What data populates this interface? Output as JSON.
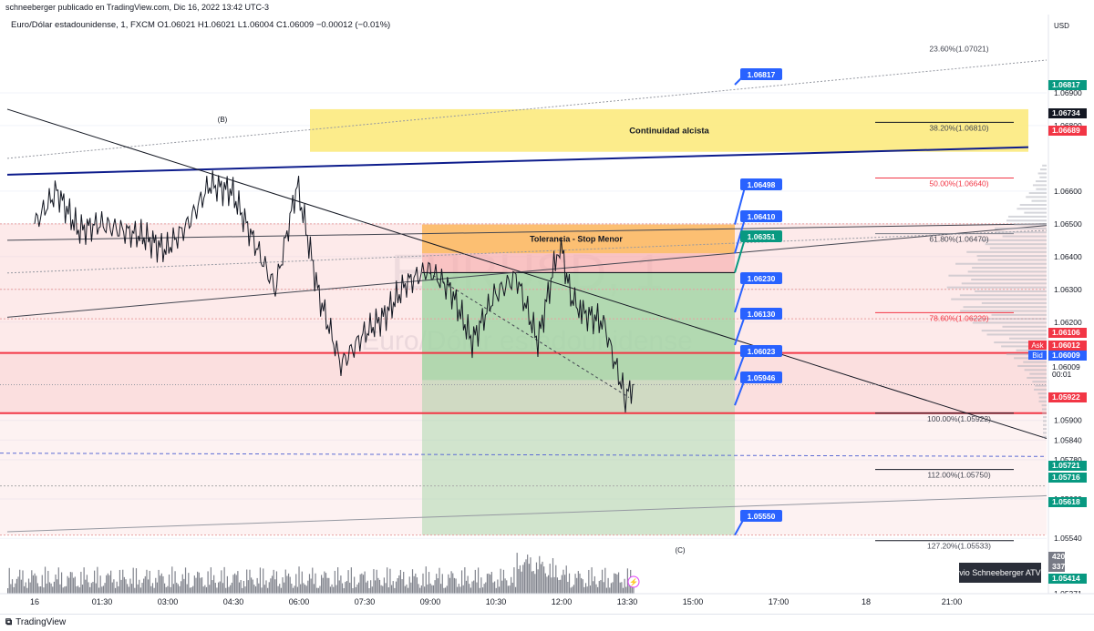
{
  "header": {
    "publisher_line": "schneeberger publicado en TradingView.com, Dic 16, 2022 13:42 UTC-3",
    "symbol_line": "Euro/Dólar estadounidense, 1, FXCM  O1.06021  H1.06021  L1.06004  C1.06009  −0.00012 (−0.01%)"
  },
  "watermark": {
    "symbol": "EURUSD, 1",
    "name": "Euro/Dólar estadounidense"
  },
  "footer": {
    "brand": "TradingView"
  },
  "colors": {
    "up": "#131722",
    "red_line": "#f23645",
    "blue_line": "#0d1c8c",
    "zone_yellow": "#fbe977",
    "zone_orange": "#fbb04a",
    "zone_green": "#a5d6a7",
    "zone_pink": "#f8c4c4",
    "tag_blue": "#2962ff",
    "tag_green": "#089981"
  },
  "chart_data": {
    "type": "line",
    "title": "",
    "currency": "USD",
    "ylim": [
      1.0535,
      1.071
    ],
    "x_ticks": [
      "16",
      "01:30",
      "03:00",
      "04:30",
      "06:00",
      "07:30",
      "09:00",
      "10:30",
      "12:00",
      "13:30",
      "15:00",
      "17:00",
      "18",
      "21:00"
    ],
    "y_ticks": [
      "1.06900",
      "1.06800",
      "1.06600",
      "1.06500",
      "1.06400",
      "1.06300",
      "1.06200",
      "1.05900",
      "1.05840",
      "1.05780",
      "1.05660",
      "1.05540",
      "1.05371"
    ],
    "series": [
      {
        "x": [
          "00:00",
          "00:30",
          "01:00",
          "01:30",
          "02:00",
          "02:30",
          "03:00",
          "03:30",
          "04:00",
          "04:30",
          "05:00",
          "05:30",
          "06:00",
          "06:30",
          "07:00",
          "07:30",
          "08:00",
          "08:30",
          "09:00",
          "09:30",
          "10:00",
          "10:30",
          "11:00",
          "11:30",
          "12:00",
          "12:15",
          "12:30",
          "13:00",
          "13:15",
          "13:30",
          "13:42"
        ],
        "values": [
          1.065,
          1.066,
          1.0648,
          1.065,
          1.0648,
          1.0646,
          1.0642,
          1.065,
          1.0662,
          1.066,
          1.0645,
          1.063,
          1.0662,
          1.0628,
          1.0607,
          1.0616,
          1.0622,
          1.0632,
          1.0636,
          1.063,
          1.0614,
          1.0628,
          1.0634,
          1.0614,
          1.0645,
          1.0628,
          1.0623,
          1.062,
          1.0608,
          1.0597,
          1.0601
        ]
      }
    ],
    "price_tags": [
      {
        "label": "1.06817",
        "kind": "blue"
      },
      {
        "label": "1.06498",
        "kind": "blue"
      },
      {
        "label": "1.06410",
        "kind": "blue"
      },
      {
        "label": "1.06351",
        "kind": "green"
      },
      {
        "label": "1.06230",
        "kind": "blue"
      },
      {
        "label": "1.06130",
        "kind": "blue"
      },
      {
        "label": "1.06023",
        "kind": "blue"
      },
      {
        "label": "1.05946",
        "kind": "blue"
      },
      {
        "label": "1.05550",
        "kind": "blue"
      }
    ],
    "axis_tags": [
      {
        "label": "1.06817",
        "bg": "#089981",
        "fg": "#ffffff"
      },
      {
        "label": "1.06734",
        "bg": "#131722",
        "fg": "#ffffff"
      },
      {
        "label": "1.06689",
        "bg": "#f23645",
        "fg": "#ffffff"
      },
      {
        "label": "1.06106",
        "bg": "#f23645",
        "fg": "#ffffff"
      },
      {
        "label": "1.06012",
        "bg": "#f23645",
        "fg": "#ffffff"
      },
      {
        "label": "1.06009",
        "bg": "#2962ff",
        "fg": "#ffffff"
      },
      {
        "label": "1.06009",
        "bg": "#ffffff",
        "fg": "#131722"
      },
      {
        "label": "00:01",
        "bg": "#ffffff",
        "fg": "#131722"
      },
      {
        "label": "1.05922",
        "bg": "#f23645",
        "fg": "#ffffff"
      },
      {
        "label": "1.05721",
        "bg": "#089981",
        "fg": "#ffffff"
      },
      {
        "label": "1.05716",
        "bg": "#089981",
        "fg": "#ffffff"
      },
      {
        "label": "1.05618",
        "bg": "#089981",
        "fg": "#ffffff"
      },
      {
        "label": "420",
        "bg": "#787b86",
        "fg": "#ffffff"
      },
      {
        "label": "337",
        "bg": "#787b86",
        "fg": "#ffffff"
      },
      {
        "label": "1.05414",
        "bg": "#089981",
        "fg": "#ffffff"
      }
    ],
    "ask_label": "Ask",
    "bid_label": "Bid",
    "fib_levels": [
      "23.60%(1.07021)",
      "38.20%(1.06810)",
      "50.00%(1.06640)",
      "61.80%(1.06470)",
      "78.60%(1.06229)",
      "100.00%(1.05922)",
      "112.00%(1.05750)",
      "127.20%(1.05533)"
    ],
    "annotations": {
      "zone_yellow": "Continuidad alcista",
      "zone_orange": "Tolerancia - Stop Menor",
      "wave_b": "(B)",
      "wave_c": "(C)",
      "author_badge": "vio Schneeberger ATV"
    }
  }
}
